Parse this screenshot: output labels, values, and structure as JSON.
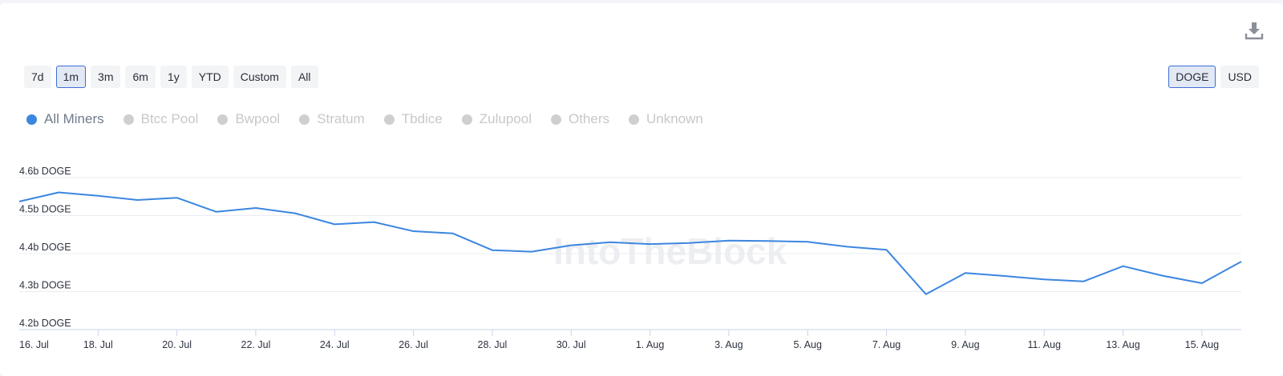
{
  "toolbar": {
    "download_icon": "download-icon",
    "ranges": [
      "7d",
      "1m",
      "3m",
      "6m",
      "1y",
      "YTD",
      "Custom",
      "All"
    ],
    "active_range": "1m",
    "units": [
      "DOGE",
      "USD"
    ],
    "active_unit": "DOGE"
  },
  "legend": {
    "items": [
      "All Miners",
      "Btcc Pool",
      "Bwpool",
      "Stratum",
      "Tbdice",
      "Zulupool",
      "Others",
      "Unknown"
    ],
    "active": "All Miners"
  },
  "watermark": "IntoTheBlock",
  "colors": {
    "line": "#3b86e0",
    "grid": "#e9ecf2",
    "axis": "#c9d3e6"
  },
  "chart_data": {
    "type": "line",
    "title": "",
    "xlabel": "",
    "ylabel": "",
    "y_ticks": [
      "4.2b DOGE",
      "4.3b DOGE",
      "4.4b DOGE",
      "4.5b DOGE",
      "4.6b DOGE"
    ],
    "y_tick_values": [
      4.2,
      4.3,
      4.4,
      4.5,
      4.6
    ],
    "ylim": [
      4.2,
      4.6
    ],
    "x_ticks": [
      "16. Jul",
      "18. Jul",
      "20. Jul",
      "22. Jul",
      "24. Jul",
      "26. Jul",
      "28. Jul",
      "30. Jul",
      "1. Aug",
      "3. Aug",
      "5. Aug",
      "7. Aug",
      "9. Aug",
      "11. Aug",
      "13. Aug",
      "15. Aug"
    ],
    "x_tick_dates": [
      "07-16",
      "07-18",
      "07-20",
      "07-22",
      "07-24",
      "07-26",
      "07-28",
      "07-30",
      "08-01",
      "08-03",
      "08-05",
      "08-07",
      "08-09",
      "08-11",
      "08-13",
      "08-15"
    ],
    "grid": true,
    "series": [
      {
        "name": "All Miners",
        "x": [
          "07-16",
          "07-17",
          "07-18",
          "07-19",
          "07-20",
          "07-21",
          "07-22",
          "07-23",
          "07-24",
          "07-25",
          "07-26",
          "07-27",
          "07-28",
          "07-29",
          "07-30",
          "07-31",
          "08-01",
          "08-02",
          "08-03",
          "08-04",
          "08-05",
          "08-06",
          "08-07",
          "08-08",
          "08-09",
          "08-10",
          "08-11",
          "08-12",
          "08-13",
          "08-14",
          "08-15",
          "08-16"
        ],
        "values": [
          4.537,
          4.561,
          4.552,
          4.541,
          4.547,
          4.51,
          4.52,
          4.506,
          4.477,
          4.483,
          4.459,
          4.453,
          4.409,
          4.405,
          4.422,
          4.43,
          4.425,
          4.428,
          4.434,
          4.433,
          4.431,
          4.418,
          4.41,
          4.293,
          4.349,
          4.341,
          4.332,
          4.327,
          4.367,
          4.342,
          4.322,
          4.379
        ]
      }
    ]
  }
}
